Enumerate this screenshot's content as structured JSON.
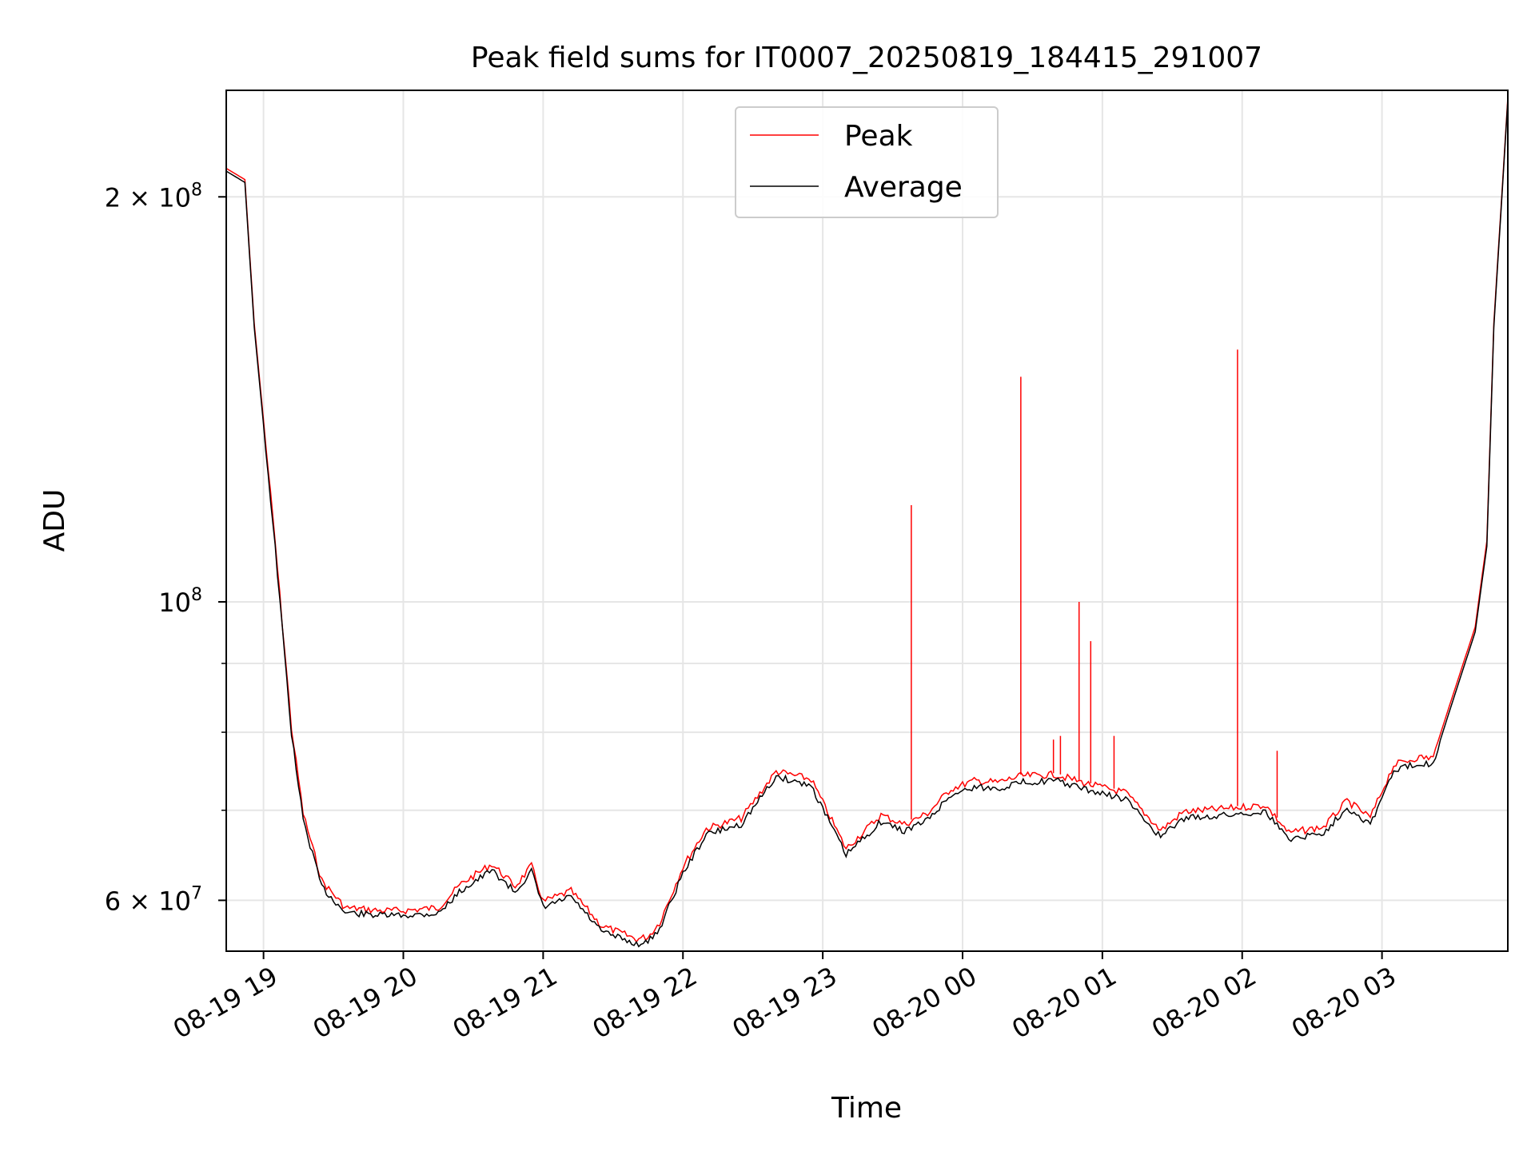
{
  "chart_data": {
    "type": "line",
    "title": "Peak field sums for IT0007_20250819_184415_291007",
    "xlabel": "Time",
    "ylabel": "ADU",
    "yscale": "log",
    "xlim": [
      "2025-08-19 18:44",
      "2025-08-20 03:54"
    ],
    "ylim": [
      55000000,
      240000000
    ],
    "grid": true,
    "legend_position": "upper center",
    "colors": {
      "Peak": "#ff0000",
      "Average": "#000000"
    },
    "x_ticks": [
      {
        "t": "2025-08-19 19:00",
        "label": "08-19 19"
      },
      {
        "t": "2025-08-19 20:00",
        "label": "08-19 20"
      },
      {
        "t": "2025-08-19 21:00",
        "label": "08-19 21"
      },
      {
        "t": "2025-08-19 22:00",
        "label": "08-19 22"
      },
      {
        "t": "2025-08-19 23:00",
        "label": "08-19 23"
      },
      {
        "t": "2025-08-20 00:00",
        "label": "08-20 00"
      },
      {
        "t": "2025-08-20 01:00",
        "label": "08-20 01"
      },
      {
        "t": "2025-08-20 02:00",
        "label": "08-20 02"
      },
      {
        "t": "2025-08-20 03:00",
        "label": "08-20 03"
      }
    ],
    "y_ticks": [
      {
        "value": 60000000,
        "label": "6 × 10",
        "exp": "7"
      },
      {
        "value": 100000000,
        "label": "10",
        "exp": "8"
      },
      {
        "value": 200000000,
        "label": "2 × 10",
        "exp": "8"
      }
    ],
    "y_minor_ticks": [
      70000000,
      80000000,
      90000000
    ],
    "series": [
      {
        "name": "Average",
        "x": [
          "2025-08-19 18:44",
          "2025-08-19 18:52",
          "2025-08-19 18:56",
          "2025-08-19 19:05",
          "2025-08-19 19:12",
          "2025-08-19 19:17",
          "2025-08-19 19:25",
          "2025-08-19 19:35",
          "2025-08-19 19:50",
          "2025-08-19 20:00",
          "2025-08-19 20:15",
          "2025-08-19 20:25",
          "2025-08-19 20:38",
          "2025-08-19 20:48",
          "2025-08-19 20:55",
          "2025-08-19 21:00",
          "2025-08-19 21:12",
          "2025-08-19 21:25",
          "2025-08-19 21:40",
          "2025-08-19 21:45",
          "2025-08-19 21:50",
          "2025-08-19 22:00",
          "2025-08-19 22:10",
          "2025-08-19 22:25",
          "2025-08-19 22:40",
          "2025-08-19 22:55",
          "2025-08-19 23:10",
          "2025-08-19 23:25",
          "2025-08-19 23:35",
          "2025-08-19 23:45",
          "2025-08-19 23:55",
          "2025-08-20 00:05",
          "2025-08-20 00:15",
          "2025-08-20 00:25",
          "2025-08-20 00:40",
          "2025-08-20 00:55",
          "2025-08-20 01:10",
          "2025-08-20 01:25",
          "2025-08-20 01:35",
          "2025-08-20 01:50",
          "2025-08-20 02:10",
          "2025-08-20 02:20",
          "2025-08-20 02:35",
          "2025-08-20 02:45",
          "2025-08-20 02:55",
          "2025-08-20 03:05",
          "2025-08-20 03:15",
          "2025-08-20 03:22",
          "2025-08-20 03:30",
          "2025-08-20 03:40",
          "2025-08-20 03:45",
          "2025-08-20 03:48",
          "2025-08-20 03:54"
        ],
        "values": [
          209000000,
          205000000,
          160000000,
          110000000,
          80000000,
          69000000,
          61500000,
          58900000,
          58600000,
          58600000,
          58800000,
          61200000,
          63300000,
          61000000,
          63200000,
          59400000,
          60500000,
          57000000,
          55800000,
          56000000,
          57300000,
          63000000,
          67300000,
          68500000,
          74300000,
          73200000,
          65000000,
          68800000,
          67700000,
          69000000,
          72000000,
          73000000,
          72800000,
          73600000,
          73800000,
          72500000,
          71500000,
          67000000,
          69200000,
          69500000,
          70000000,
          66800000,
          67500000,
          70500000,
          68500000,
          75000000,
          76000000,
          76000000,
          84000000,
          95000000,
          110000000,
          160000000,
          236000000
        ]
      },
      {
        "name": "Peak",
        "x": [
          "2025-08-19 18:44",
          "2025-08-19 18:52",
          "2025-08-19 18:56",
          "2025-08-19 19:05",
          "2025-08-19 19:12",
          "2025-08-19 19:17",
          "2025-08-19 19:25",
          "2025-08-19 19:35",
          "2025-08-19 19:50",
          "2025-08-19 20:00",
          "2025-08-19 20:15",
          "2025-08-19 20:25",
          "2025-08-19 20:38",
          "2025-08-19 20:48",
          "2025-08-19 20:55",
          "2025-08-19 21:00",
          "2025-08-19 21:12",
          "2025-08-19 21:25",
          "2025-08-19 21:40",
          "2025-08-19 21:45",
          "2025-08-19 21:50",
          "2025-08-19 22:00",
          "2025-08-19 22:10",
          "2025-08-19 22:25",
          "2025-08-19 22:40",
          "2025-08-19 22:55",
          "2025-08-19 23:10",
          "2025-08-19 23:25",
          "2025-08-19 23:35",
          "2025-08-19 23:45",
          "2025-08-19 23:55",
          "2025-08-20 00:05",
          "2025-08-20 00:15",
          "2025-08-20 00:25",
          "2025-08-20 00:40",
          "2025-08-20 00:55",
          "2025-08-20 01:10",
          "2025-08-20 01:25",
          "2025-08-20 01:35",
          "2025-08-20 01:50",
          "2025-08-20 02:10",
          "2025-08-20 02:20",
          "2025-08-20 02:35",
          "2025-08-20 02:45",
          "2025-08-20 02:55",
          "2025-08-20 03:05",
          "2025-08-20 03:15",
          "2025-08-20 03:22",
          "2025-08-20 03:30",
          "2025-08-20 03:40",
          "2025-08-20 03:45",
          "2025-08-20 03:48",
          "2025-08-20 03:54"
        ],
        "values": [
          210000000,
          206000000,
          161000000,
          111000000,
          80800000,
          69800000,
          62200000,
          59400000,
          59100000,
          59100000,
          59400000,
          61900000,
          64000000,
          61600000,
          63800000,
          60000000,
          61100000,
          57600000,
          56300000,
          56500000,
          57900000,
          63700000,
          68000000,
          69200000,
          75000000,
          74000000,
          65700000,
          69600000,
          68500000,
          69800000,
          72800000,
          73800000,
          73600000,
          74400000,
          74600000,
          73300000,
          72300000,
          67800000,
          70000000,
          70300000,
          70800000,
          67500000,
          68200000,
          71300000,
          69300000,
          75800000,
          76800000,
          76800000,
          84800000,
          95800000,
          111000000,
          161000000,
          237000000
        ],
        "spikes": [
          {
            "t": "2025-08-19 23:38",
            "value": 118000000
          },
          {
            "t": "2025-08-20 00:25",
            "value": 147000000
          },
          {
            "t": "2025-08-20 00:39",
            "value": 79000000
          },
          {
            "t": "2025-08-20 00:42",
            "value": 79500000
          },
          {
            "t": "2025-08-20 00:50",
            "value": 100000000
          },
          {
            "t": "2025-08-20 00:55",
            "value": 93500000
          },
          {
            "t": "2025-08-20 01:05",
            "value": 79500000
          },
          {
            "t": "2025-08-20 01:58",
            "value": 154000000
          },
          {
            "t": "2025-08-20 02:15",
            "value": 77500000
          }
        ]
      }
    ]
  }
}
